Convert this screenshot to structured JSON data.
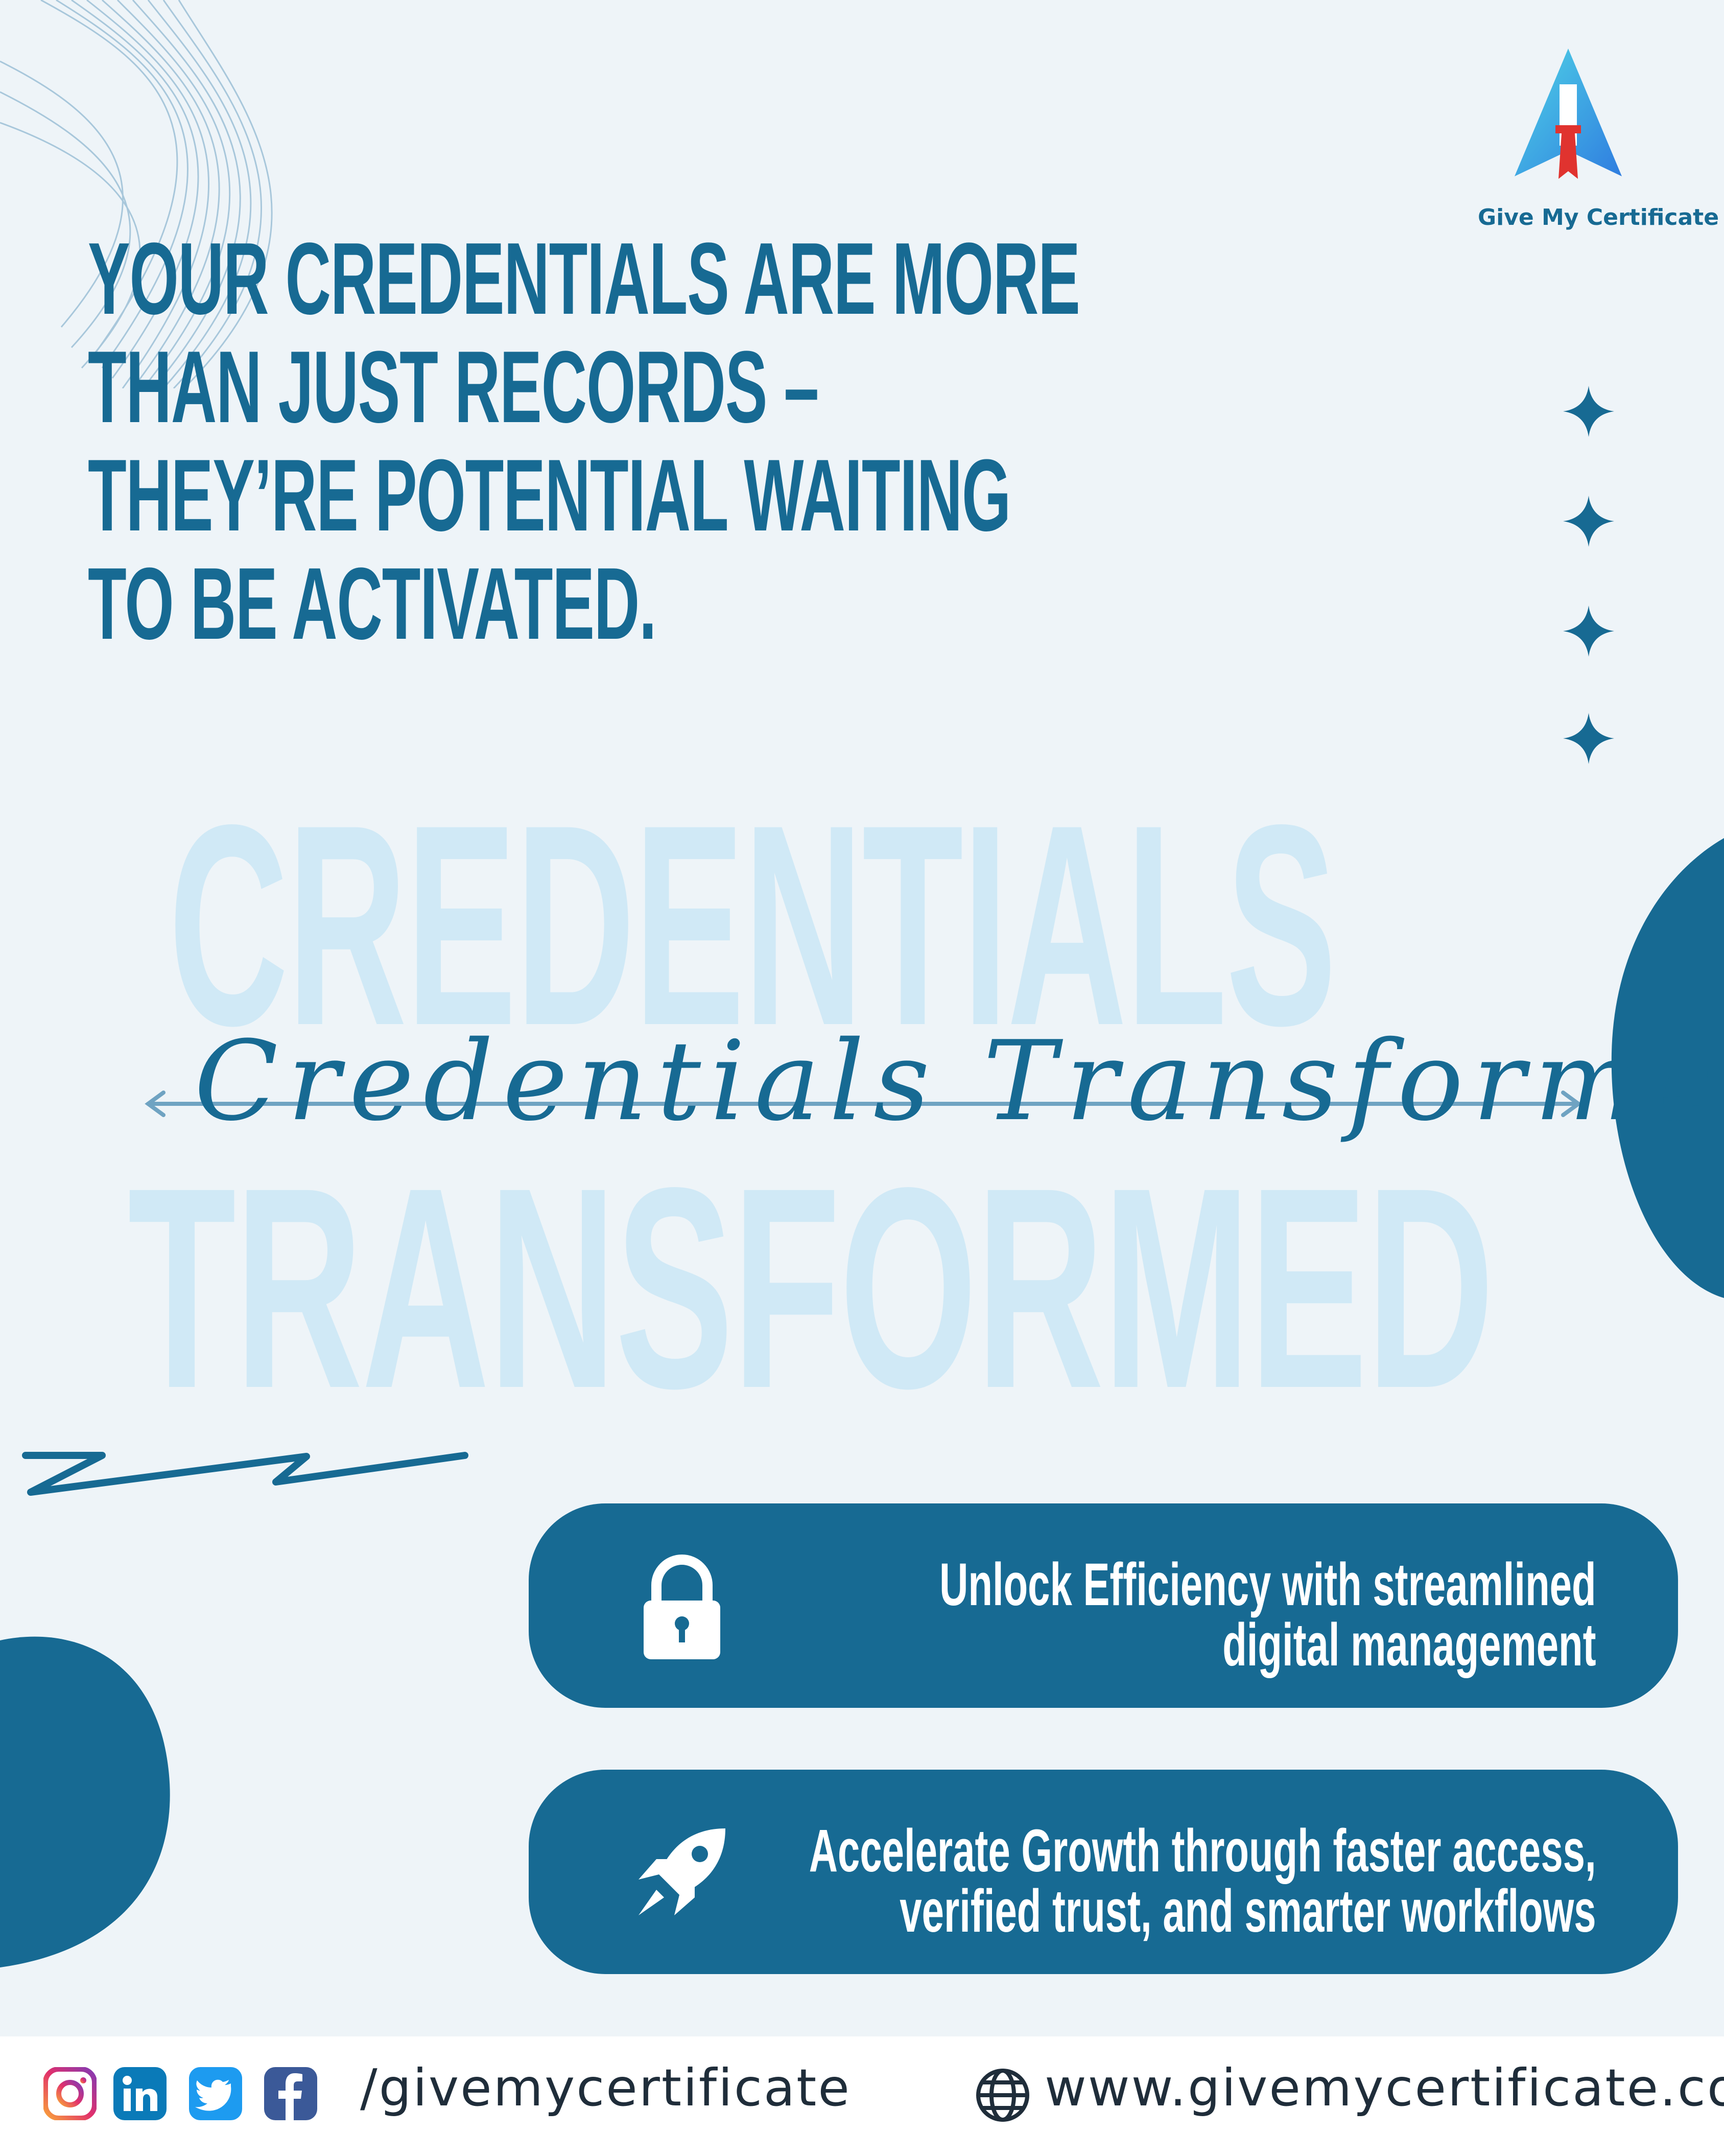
{
  "brand": {
    "name": "Give My Certificate"
  },
  "headline": {
    "lines": [
      "YOUR CREDENTIALS ARE MORE",
      "THAN JUST RECORDS –",
      "THEY’RE POTENTIAL WAITING",
      "TO BE ACTIVATED."
    ]
  },
  "watermark": {
    "line1": "CREDENTIALS",
    "line2": "TRANSFORMED"
  },
  "script_title": "Credentials Transformed",
  "cards": [
    {
      "icon": "lock-icon",
      "line1": "Unlock Efficiency with streamlined",
      "line2": "digital management"
    },
    {
      "icon": "rocket-icon",
      "line1": "Accelerate Growth through faster access,",
      "line2": "verified trust, and smarter workflows"
    }
  ],
  "footer": {
    "social_icons": [
      "instagram-icon",
      "linkedin-icon",
      "twitter-icon",
      "facebook-icon"
    ],
    "handle": "/givemycertificate",
    "website": "www.givemycertificate.com",
    "website_icon": "globe-icon"
  },
  "colors": {
    "background": "#eef4f8",
    "primary": "#176a93",
    "watermark": "#d0e9f6",
    "footer_bg": "#ffffff"
  }
}
